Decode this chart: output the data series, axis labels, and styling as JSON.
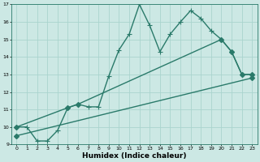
{
  "title": "",
  "xlabel": "Humidex (Indice chaleur)",
  "bg_color": "#cce8e4",
  "line_color": "#2a7a6a",
  "grid_color": "#aad4ce",
  "xlim": [
    -0.5,
    23.5
  ],
  "ylim": [
    9,
    17
  ],
  "xticks": [
    0,
    1,
    2,
    3,
    4,
    5,
    6,
    7,
    8,
    9,
    10,
    11,
    12,
    13,
    14,
    15,
    16,
    17,
    18,
    19,
    20,
    21,
    22,
    23
  ],
  "yticks": [
    9,
    10,
    11,
    12,
    13,
    14,
    15,
    16,
    17
  ],
  "line1_x": [
    0,
    1,
    2,
    3,
    4,
    5,
    6,
    7,
    8,
    9,
    10,
    11,
    12,
    13,
    14,
    15,
    16,
    17,
    18,
    19,
    20,
    21,
    22,
    23
  ],
  "line1_y": [
    10.0,
    10.0,
    9.2,
    9.2,
    9.8,
    11.1,
    11.3,
    11.15,
    11.15,
    12.9,
    14.4,
    15.3,
    17.0,
    15.8,
    14.3,
    15.3,
    16.0,
    16.65,
    16.2,
    15.5,
    15.0,
    14.3,
    13.0,
    13.0
  ],
  "line2_x": [
    0,
    5,
    6,
    20,
    21,
    22,
    23
  ],
  "line2_y": [
    10.0,
    11.1,
    11.3,
    15.0,
    14.3,
    13.0,
    13.0
  ],
  "line3_x": [
    0,
    23
  ],
  "line3_y": [
    9.5,
    12.8
  ],
  "markersize1": 3,
  "markersize2": 3,
  "linewidth": 1.0
}
